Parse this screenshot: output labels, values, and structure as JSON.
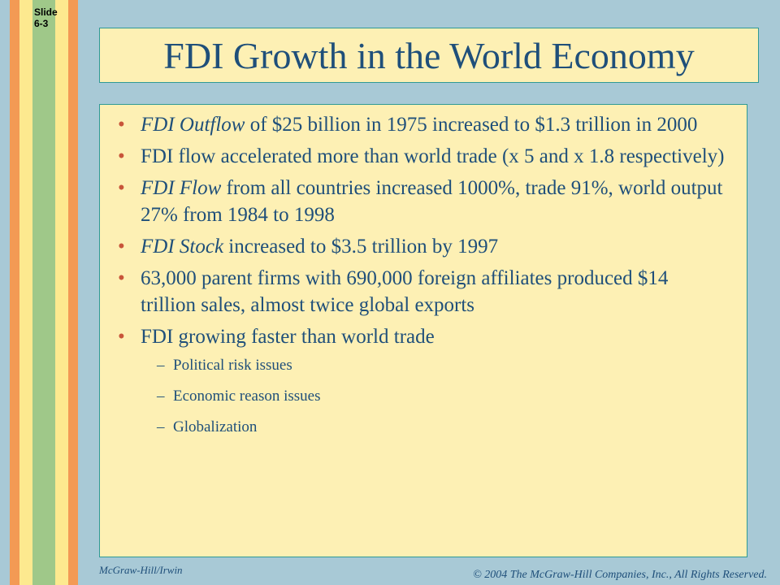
{
  "slide_number": "Slide\n6-3",
  "title": "FDI Growth in the World Economy",
  "colors": {
    "background": "#a8c9d6",
    "stripe_orange": "#f39a54",
    "stripe_yellow": "#fde98f",
    "stripe_green": "#9fc889",
    "panel": "#fdf0b4",
    "text": "#1f4f7a",
    "bullet": "#c8553a"
  },
  "bullets": [
    {
      "em": "FDI Outflow",
      "text": " of $25 billion in 1975 increased to $1.3 trillion in 2000"
    },
    {
      "em": "",
      "text": "FDI flow accelerated more than world trade (x 5 and x 1.8 respectively)"
    },
    {
      "em": "FDI Flow",
      "text": " from all countries increased 1000%, trade 91%, world output 27% from 1984 to 1998"
    },
    {
      "em": "FDI Stock",
      "text": " increased to $3.5 trillion by 1997"
    },
    {
      "em": "",
      "text": "63,000 parent firms with 690,000 foreign affiliates produced $14 trillion sales, almost twice global exports"
    },
    {
      "em": "",
      "text": "FDI growing faster than world trade"
    }
  ],
  "sub_bullets": [
    "Political risk issues",
    "Economic reason issues",
    "Globalization"
  ],
  "footer_left": "McGraw-Hill/Irwin",
  "footer_right": "© 2004 The McGraw-Hill Companies, Inc., All Rights Reserved."
}
